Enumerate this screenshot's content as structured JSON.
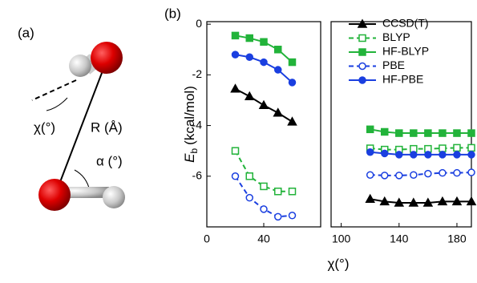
{
  "panel_a": {
    "label": "(a)",
    "angle_chi": "χ(°)",
    "distance": "R (Å)",
    "angle_alpha": "α (°)"
  },
  "chart_data": [
    {
      "type": "line",
      "panel_label": "(b)",
      "y_label": {
        "symbol": "E",
        "subscript": "b",
        "unit": "(kcal/mol)"
      },
      "x_label": "χ(°)",
      "x": [
        20,
        30,
        40,
        50,
        60
      ],
      "xlim": [
        0,
        80
      ],
      "xticks": [
        0,
        40
      ],
      "ylim": [
        -8,
        0.1
      ],
      "yticks": [
        0,
        -2,
        -4,
        -6
      ],
      "series": [
        {
          "color": "#000000",
          "marker": "triangle",
          "filled": true,
          "dashed": false,
          "values": [
            -2.55,
            -2.85,
            -3.2,
            -3.5,
            -3.85
          ]
        },
        {
          "color": "#22b33a",
          "marker": "square",
          "filled": false,
          "dashed": true,
          "values": [
            -5.0,
            -6.0,
            -6.4,
            -6.6,
            -6.6
          ]
        },
        {
          "color": "#22b33a",
          "marker": "square",
          "filled": true,
          "dashed": false,
          "values": [
            -0.45,
            -0.55,
            -0.7,
            -1.0,
            -1.5
          ]
        },
        {
          "color": "#1a3fe0",
          "marker": "circle",
          "filled": false,
          "dashed": true,
          "values": [
            -6.0,
            -6.85,
            -7.3,
            -7.6,
            -7.55
          ]
        },
        {
          "color": "#1a3fe0",
          "marker": "circle",
          "filled": true,
          "dashed": false,
          "values": [
            -1.2,
            -1.3,
            -1.5,
            -1.8,
            -2.3
          ]
        }
      ]
    },
    {
      "type": "line",
      "x": [
        120,
        130,
        140,
        150,
        160,
        170,
        180,
        190
      ],
      "xlim": [
        93,
        190
      ],
      "xticks": [
        100,
        140,
        180
      ],
      "ylim": [
        -8,
        0.1
      ],
      "legend": "upper right",
      "series": [
        {
          "name": "CCSD(T)",
          "color": "#000000",
          "marker": "triangle",
          "filled": true,
          "dashed": false,
          "values": [
            -6.9,
            -7.0,
            -7.05,
            -7.05,
            -7.05,
            -7.0,
            -7.0,
            -7.0
          ]
        },
        {
          "name": "BLYP",
          "color": "#22b33a",
          "marker": "square",
          "filled": false,
          "dashed": true,
          "values": [
            -4.9,
            -4.95,
            -4.95,
            -4.92,
            -4.92,
            -4.9,
            -4.88,
            -4.88
          ]
        },
        {
          "name": "HF-BLYP",
          "color": "#22b33a",
          "marker": "square",
          "filled": true,
          "dashed": false,
          "values": [
            -4.15,
            -4.25,
            -4.3,
            -4.3,
            -4.3,
            -4.3,
            -4.3,
            -4.3
          ]
        },
        {
          "name": "PBE",
          "color": "#1a3fe0",
          "marker": "circle",
          "filled": false,
          "dashed": true,
          "values": [
            -5.95,
            -5.97,
            -5.97,
            -5.95,
            -5.9,
            -5.87,
            -5.87,
            -5.85
          ]
        },
        {
          "name": "HF-PBE",
          "color": "#1a3fe0",
          "marker": "circle",
          "filled": true,
          "dashed": false,
          "values": [
            -5.05,
            -5.1,
            -5.15,
            -5.15,
            -5.15,
            -5.15,
            -5.15,
            -5.15
          ]
        }
      ]
    }
  ]
}
